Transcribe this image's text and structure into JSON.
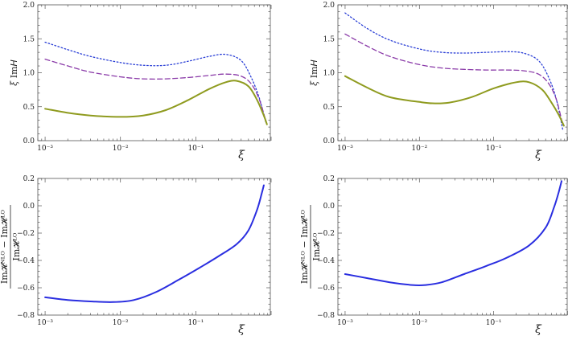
{
  "chart_data": [
    {
      "type": "line",
      "xscale": "log",
      "xlim": [
        0.0008,
        1.0
      ],
      "ylim": [
        0.0,
        2.0
      ],
      "xlabel": "ξ",
      "ylabel": "ξ ImH",
      "xticks": [
        0.001,
        0.01,
        0.1
      ],
      "xtick_labels": [
        "10⁻³",
        "10⁻²",
        "10⁻¹"
      ],
      "yticks": [
        0.0,
        0.5,
        1.0,
        1.5,
        2.0
      ],
      "ytick_labels": [
        "0.0",
        "0.5",
        "1.0",
        "1.5",
        "2.0"
      ],
      "series": [
        {
          "style": "dotted",
          "color": "#2a3fd6",
          "x": [
            0.001,
            0.002,
            0.004,
            0.01,
            0.02,
            0.04,
            0.08,
            0.15,
            0.25,
            0.4,
            0.55,
            0.7,
            0.85
          ],
          "y": [
            1.45,
            1.34,
            1.24,
            1.15,
            1.11,
            1.11,
            1.17,
            1.24,
            1.27,
            1.18,
            0.92,
            0.62,
            0.27
          ]
        },
        {
          "style": "dashed",
          "color": "#8a3aa8",
          "x": [
            0.001,
            0.002,
            0.004,
            0.01,
            0.02,
            0.04,
            0.08,
            0.15,
            0.25,
            0.4,
            0.55,
            0.7,
            0.85
          ],
          "y": [
            1.2,
            1.1,
            1.01,
            0.94,
            0.91,
            0.91,
            0.93,
            0.96,
            0.98,
            0.95,
            0.83,
            0.6,
            0.29
          ]
        },
        {
          "style": "solid",
          "color": "#8f9b1f",
          "x": [
            0.001,
            0.002,
            0.004,
            0.01,
            0.02,
            0.04,
            0.08,
            0.15,
            0.25,
            0.35,
            0.5,
            0.65,
            0.8,
            0.88
          ],
          "y": [
            0.47,
            0.41,
            0.37,
            0.35,
            0.37,
            0.45,
            0.6,
            0.76,
            0.86,
            0.88,
            0.8,
            0.6,
            0.37,
            0.24
          ]
        }
      ]
    },
    {
      "type": "line",
      "xscale": "log",
      "xlim": [
        0.0008,
        1.0
      ],
      "ylim": [
        0.0,
        2.0
      ],
      "xlabel": "ξ",
      "ylabel": "ξ ImH",
      "xticks": [
        0.001,
        0.01,
        0.1
      ],
      "xtick_labels": [
        "10⁻³",
        "10⁻²",
        "10⁻¹"
      ],
      "yticks": [
        0.0,
        0.5,
        1.0,
        1.5,
        2.0
      ],
      "ytick_labels": [
        "0.0",
        "0.5",
        "1.0",
        "1.5",
        "2.0"
      ],
      "series": [
        {
          "style": "dotted",
          "color": "#2a3fd6",
          "x": [
            0.001,
            0.002,
            0.004,
            0.01,
            0.02,
            0.04,
            0.08,
            0.15,
            0.25,
            0.4,
            0.55,
            0.7,
            0.85
          ],
          "y": [
            1.88,
            1.65,
            1.48,
            1.35,
            1.3,
            1.29,
            1.3,
            1.31,
            1.29,
            1.18,
            0.93,
            0.6,
            0.16
          ]
        },
        {
          "style": "dashed",
          "color": "#8a3aa8",
          "x": [
            0.001,
            0.002,
            0.004,
            0.01,
            0.02,
            0.04,
            0.08,
            0.15,
            0.25,
            0.4,
            0.55,
            0.7,
            0.85
          ],
          "y": [
            1.57,
            1.39,
            1.24,
            1.12,
            1.07,
            1.05,
            1.04,
            1.04,
            1.03,
            0.98,
            0.84,
            0.6,
            0.23
          ]
        },
        {
          "style": "solid",
          "color": "#8f9b1f",
          "x": [
            0.001,
            0.002,
            0.004,
            0.01,
            0.015,
            0.025,
            0.05,
            0.1,
            0.2,
            0.3,
            0.45,
            0.6,
            0.75,
            0.88
          ],
          "y": [
            0.95,
            0.78,
            0.64,
            0.57,
            0.55,
            0.56,
            0.64,
            0.77,
            0.86,
            0.86,
            0.75,
            0.56,
            0.38,
            0.22
          ]
        }
      ]
    },
    {
      "type": "line",
      "xscale": "log",
      "xlim": [
        0.0008,
        1.0
      ],
      "ylim": [
        -0.8,
        0.2
      ],
      "xlabel": "ξ",
      "ylabel": "(ImH^NLO − ImH^LO) / ImH^LO",
      "xticks": [
        0.001,
        0.01,
        0.1
      ],
      "xtick_labels": [
        "10⁻³",
        "10⁻²",
        "10⁻¹"
      ],
      "yticks": [
        -0.8,
        -0.6,
        -0.4,
        -0.2,
        0.0,
        0.2
      ],
      "ytick_labels": [
        "−0.8",
        "−0.6",
        "−0.4",
        "−0.2",
        "0.0",
        "0.2"
      ],
      "series": [
        {
          "style": "solid",
          "color": "#2a2ee0",
          "x": [
            0.001,
            0.002,
            0.004,
            0.008,
            0.015,
            0.03,
            0.06,
            0.1,
            0.2,
            0.35,
            0.5,
            0.65,
            0.75,
            0.8
          ],
          "y": [
            -0.67,
            -0.69,
            -0.7,
            -0.705,
            -0.69,
            -0.63,
            -0.54,
            -0.47,
            -0.37,
            -0.28,
            -0.18,
            -0.03,
            0.09,
            0.15
          ]
        }
      ]
    },
    {
      "type": "line",
      "xscale": "log",
      "xlim": [
        0.0008,
        1.0
      ],
      "ylim": [
        -0.8,
        0.2
      ],
      "xlabel": "ξ",
      "ylabel": "(ImH^NLO − ImH^LO) / ImH^LO",
      "xticks": [
        0.001,
        0.01,
        0.1
      ],
      "xtick_labels": [
        "10⁻³",
        "10⁻²",
        "10⁻¹"
      ],
      "yticks": [
        -0.8,
        -0.6,
        -0.4,
        -0.2,
        0.0,
        0.2
      ],
      "ytick_labels": [
        "−0.8",
        "−0.6",
        "−0.4",
        "−0.2",
        "0.0",
        "0.2"
      ],
      "series": [
        {
          "style": "solid",
          "color": "#2a2ee0",
          "x": [
            0.001,
            0.002,
            0.004,
            0.008,
            0.012,
            0.02,
            0.04,
            0.08,
            0.15,
            0.3,
            0.5,
            0.65,
            0.75,
            0.82
          ],
          "y": [
            -0.5,
            -0.53,
            -0.56,
            -0.58,
            -0.58,
            -0.56,
            -0.5,
            -0.44,
            -0.38,
            -0.29,
            -0.16,
            -0.01,
            0.1,
            0.18
          ]
        }
      ]
    }
  ]
}
